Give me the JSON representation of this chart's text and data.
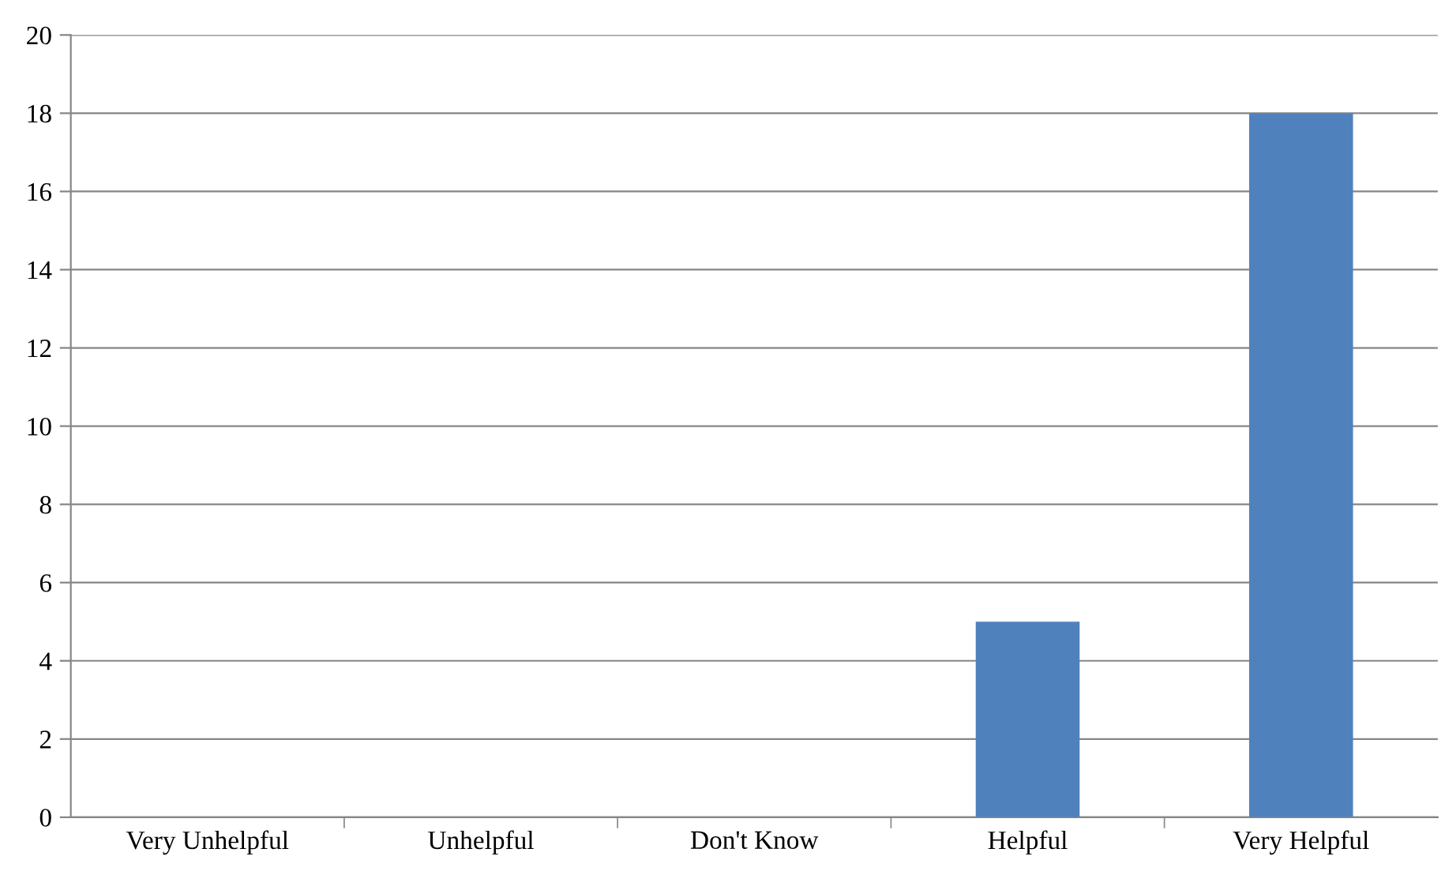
{
  "chart_data": {
    "type": "bar",
    "categories": [
      "Very Unhelpful",
      "Unhelpful",
      "Don't Know",
      "Helpful",
      "Very Helpful"
    ],
    "values": [
      0,
      0,
      0,
      5,
      18
    ],
    "color": "#4f81bd",
    "ylim": [
      0,
      20
    ],
    "yticks": [
      0,
      2,
      4,
      6,
      8,
      10,
      12,
      14,
      16,
      18,
      20
    ],
    "grid": "y",
    "legend": false
  }
}
